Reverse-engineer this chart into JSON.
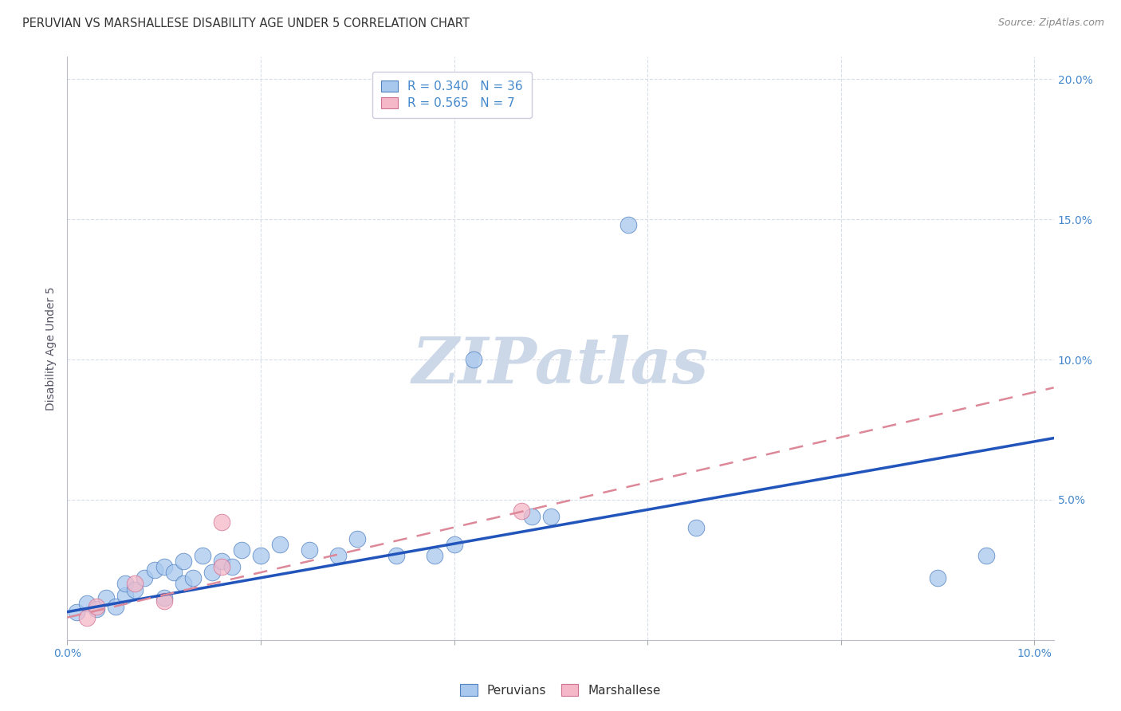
{
  "title": "PERUVIAN VS MARSHALLESE DISABILITY AGE UNDER 5 CORRELATION CHART",
  "source": "Source: ZipAtlas.com",
  "ylabel": "Disability Age Under 5",
  "xlim": [
    0.0,
    0.102
  ],
  "ylim": [
    0.0,
    0.208
  ],
  "peruvian_R": 0.34,
  "peruvian_N": 36,
  "marshallese_R": 0.565,
  "marshallese_N": 7,
  "peruvian_color": "#a8c8ee",
  "marshallese_color": "#f5b8c8",
  "peruvian_edge_color": "#5080c0",
  "marshallese_edge_color": "#d07090",
  "peruvian_line_color": "#2255bb",
  "marshallese_line_color": "#dd8899",
  "watermark": "ZIPatlas",
  "watermark_color": "#ccd8e8",
  "grid_color": "#d8dde8",
  "right_ytick_color": "#4488cc",
  "title_fontsize": 10.5,
  "tick_fontsize": 10,
  "legend_fontsize": 11,
  "peruvian_x": [
    0.001,
    0.002,
    0.003,
    0.004,
    0.005,
    0.006,
    0.006,
    0.007,
    0.008,
    0.009,
    0.01,
    0.01,
    0.011,
    0.012,
    0.012,
    0.013,
    0.014,
    0.015,
    0.016,
    0.017,
    0.018,
    0.02,
    0.022,
    0.025,
    0.028,
    0.03,
    0.034,
    0.038,
    0.04,
    0.042,
    0.048,
    0.05,
    0.058,
    0.065,
    0.09,
    0.095
  ],
  "peruvian_y": [
    0.01,
    0.013,
    0.011,
    0.015,
    0.012,
    0.016,
    0.02,
    0.018,
    0.022,
    0.025,
    0.015,
    0.026,
    0.024,
    0.02,
    0.028,
    0.022,
    0.03,
    0.024,
    0.028,
    0.026,
    0.032,
    0.03,
    0.034,
    0.032,
    0.03,
    0.036,
    0.03,
    0.03,
    0.034,
    0.1,
    0.044,
    0.044,
    0.148,
    0.04,
    0.022,
    0.03
  ],
  "marshallese_x": [
    0.002,
    0.003,
    0.007,
    0.01,
    0.016,
    0.016,
    0.047
  ],
  "marshallese_y": [
    0.008,
    0.012,
    0.02,
    0.014,
    0.042,
    0.026,
    0.046
  ],
  "peruvian_line_x0": 0.0,
  "peruvian_line_x1": 0.102,
  "peruvian_line_y0": 0.01,
  "peruvian_line_y1": 0.072,
  "marshallese_line_x0": 0.0,
  "marshallese_line_x1": 0.102,
  "marshallese_line_y0": 0.008,
  "marshallese_line_y1": 0.09
}
